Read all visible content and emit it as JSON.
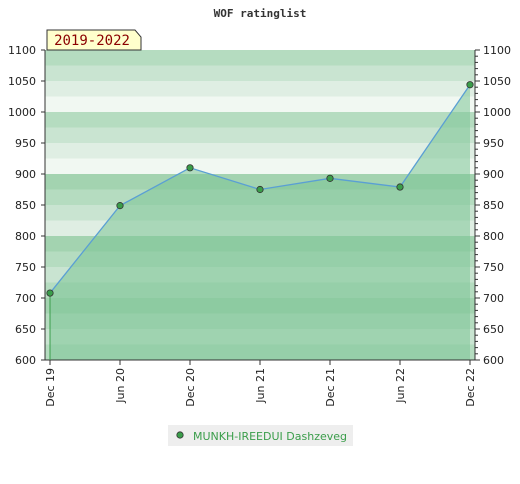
{
  "chart_data": {
    "type": "area",
    "title": "WOF ratinglist",
    "period_label": "2019-2022",
    "ylim": [
      600,
      1100
    ],
    "y_ticks": [
      600,
      650,
      700,
      750,
      800,
      850,
      900,
      950,
      1000,
      1050,
      1100
    ],
    "categories": [
      "Dec 19",
      "Jun 20",
      "Dec 20",
      "Jun 21",
      "Dec 21",
      "Jun 22",
      "Dec 22"
    ],
    "series": [
      {
        "name": "MUNKH-IREEDUI Dashzeveg",
        "values": [
          708,
          849,
          910,
          875,
          893,
          879,
          1044
        ]
      }
    ],
    "grid": true,
    "legend": "bottom-center",
    "colors": {
      "band_light": [
        "#f1f8f2",
        "#dfeee3",
        "#c9e4d1",
        "#b5dcc0",
        "#a3d3b0"
      ],
      "area_fill": "#7cc495",
      "line": "#5a9fd4",
      "marker": "#3a9d4a"
    }
  }
}
